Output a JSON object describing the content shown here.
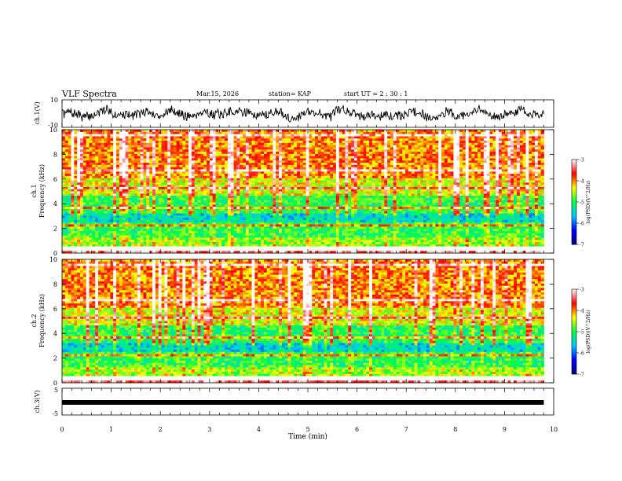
{
  "header": {
    "title": "VLF Spectra",
    "date": "Mar.15, 2026",
    "station": "station= KAP",
    "start": "start UT =  2 : 30 : 1"
  },
  "chart_data": [
    {
      "type": "line",
      "name": "ch1-waveform",
      "ylabel": "ch.1(V)",
      "ylim": [
        -10,
        10
      ],
      "yticks": [
        "10",
        "-10"
      ],
      "xlim": [
        0,
        10
      ],
      "x_extent": [
        0,
        9.8
      ],
      "seed": 7,
      "noise_amplitude": 6.5
    },
    {
      "type": "heatmap",
      "name": "ch1-spectrogram",
      "ylabel": "ch.1\nFrequency (kHz)",
      "ylim": [
        0,
        10
      ],
      "yticks": [
        "0",
        "2",
        "4",
        "6",
        "8",
        "10"
      ],
      "xlim": [
        0,
        10
      ],
      "x_extent": [
        0,
        9.8
      ],
      "color_scale": {
        "label": "log(PSD)(V^2/Hz)",
        "ticks": [
          "-3",
          "-4",
          "-5",
          "-6",
          "-7"
        ],
        "range": [
          -7,
          -3
        ],
        "colors": [
          "#000080",
          "#0000ff",
          "#00c8ff",
          "#00ff40",
          "#ffff00",
          "#ff0000",
          "#ffffff"
        ]
      }
    },
    {
      "type": "heatmap",
      "name": "ch2-spectrogram",
      "ylabel": "ch.2\nFrequency (kHz)",
      "ylim": [
        0,
        10
      ],
      "yticks": [
        "0",
        "2",
        "4",
        "6",
        "8",
        "10"
      ],
      "xlim": [
        0,
        10
      ],
      "x_extent": [
        0,
        9.8
      ],
      "color_scale": {
        "label": "log(PSD)(V^2/Hz)",
        "ticks": [
          "-3",
          "-4",
          "-5",
          "-6",
          "-7"
        ],
        "range": [
          -7,
          -3
        ],
        "colors": [
          "#000080",
          "#0000ff",
          "#00c8ff",
          "#00ff40",
          "#ffff00",
          "#ff0000",
          "#ffffff"
        ]
      }
    },
    {
      "type": "line",
      "name": "ch3-waveform",
      "ylabel": "ch.3(V)",
      "ylim": [
        -5,
        5
      ],
      "yticks": [
        "5",
        "-5"
      ],
      "xlim": [
        0,
        10
      ],
      "x_extent": [
        0,
        9.8
      ],
      "value": -0.3
    }
  ],
  "xaxis": {
    "label": "Time (min)",
    "ticks": [
      "0",
      "1",
      "2",
      "3",
      "4",
      "5",
      "6",
      "7",
      "8",
      "9",
      "10"
    ]
  }
}
